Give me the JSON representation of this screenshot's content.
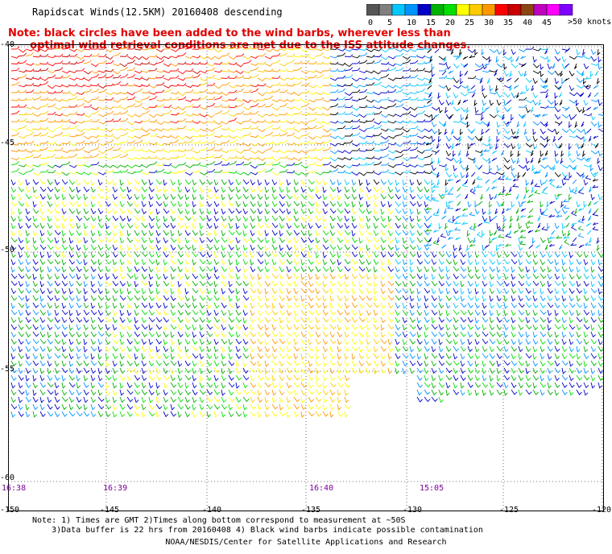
{
  "title": "Rapidscat Winds(12.5KM) 20160408 descending",
  "note_lines": [
    "Note: black circles have been added to the wind barbs, wherever less than",
    "      optimal wind retrieval conditions are met due to the ISS attitude changes."
  ],
  "colorbar": {
    "labels": [
      "0",
      "5",
      "10",
      "15",
      "20",
      "25",
      "30",
      "35",
      "40",
      "45",
      ">50"
    ],
    "unit": "knots",
    "colors": [
      "#555555",
      "#7f7f7f",
      "#00c8ff",
      "#0094ff",
      "#0000c8",
      "#00b000",
      "#00e000",
      "#ffff00",
      "#ffcc00",
      "#ff9900",
      "#ff0000",
      "#c80000",
      "#8b4513",
      "#c000c0",
      "#ff00ff",
      "#8000ff"
    ]
  },
  "lat_labels": [
    "-40",
    "-45",
    "-50",
    "-55",
    "-60"
  ],
  "lon_labels": [
    "-150",
    "-145",
    "-140",
    "-135",
    "-130",
    "-125",
    "-120"
  ],
  "times": [
    "16:38",
    "16:39",
    "16:40",
    "15:05"
  ],
  "footer_lines": [
    "Note: 1) Times are GMT 2)Times along bottom correspond to measurement at ~50S",
    "    3)Data buffer is 22 hrs from 20160408 4) Black wind barbs indicate possible contamination"
  ],
  "credit": "NOAA/NESDIS/Center for Satellite Applications and Research"
}
